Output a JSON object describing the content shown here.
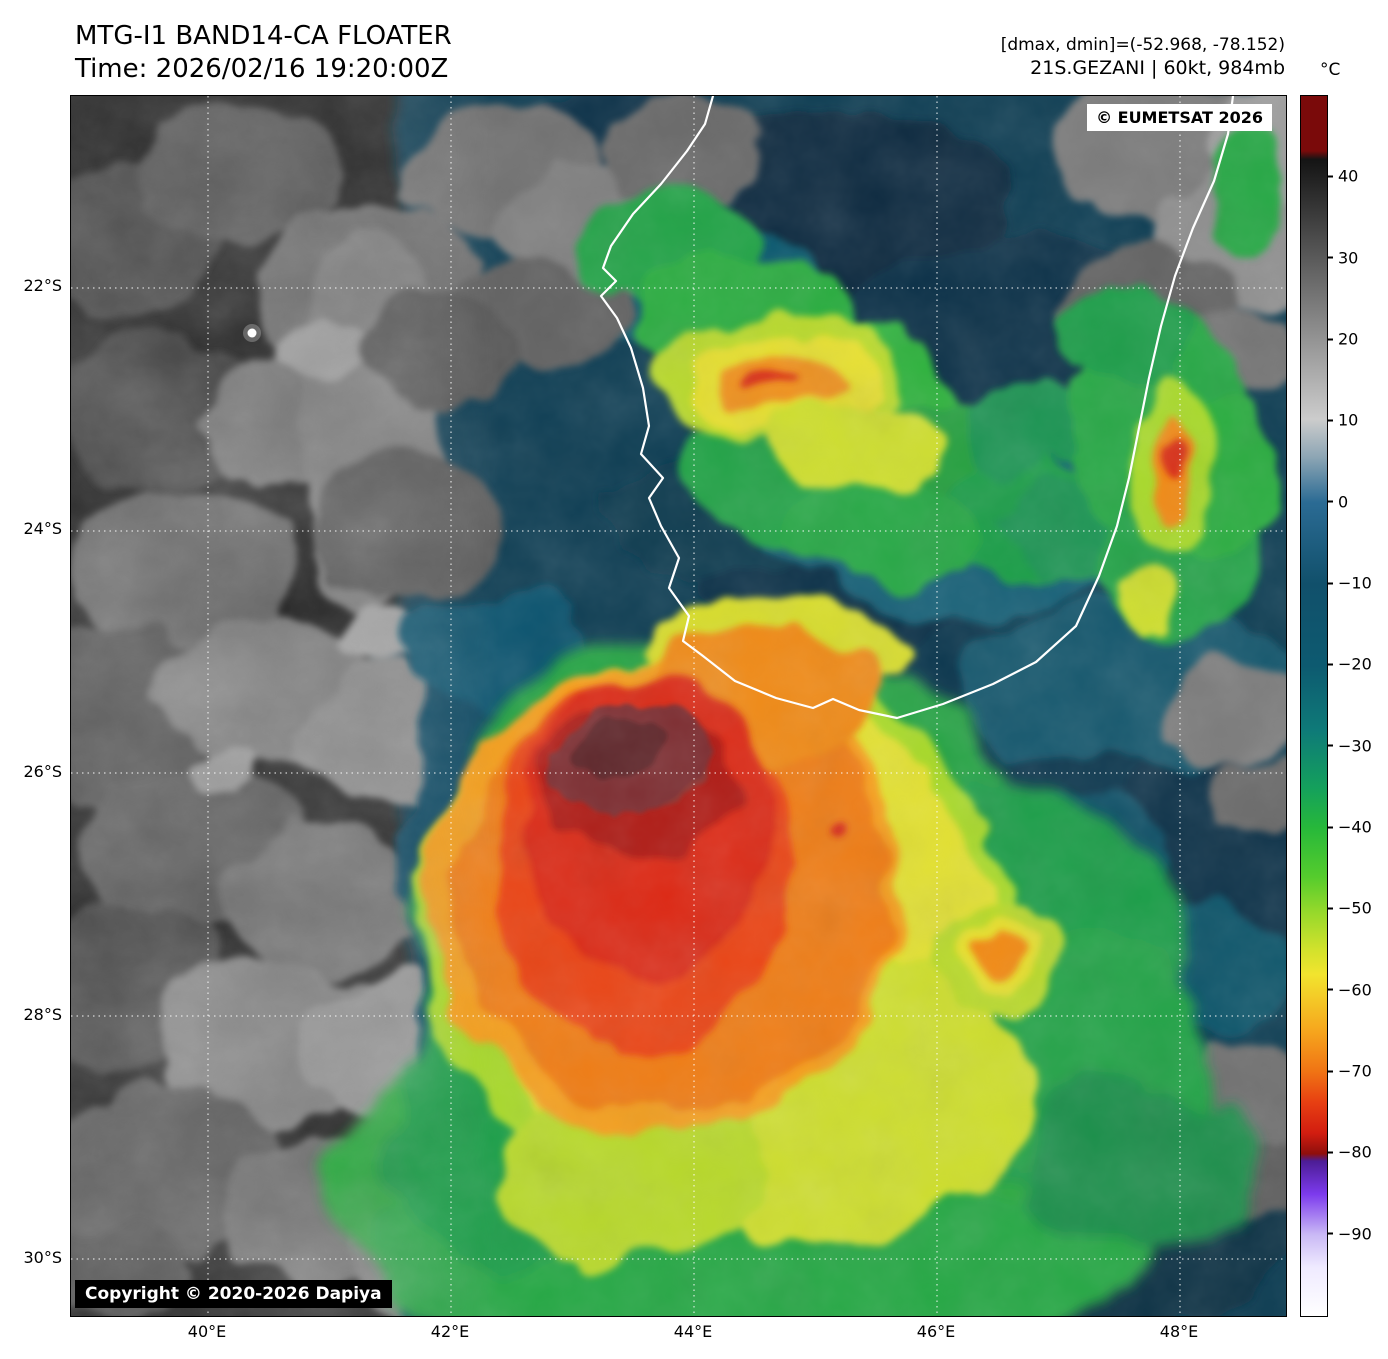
{
  "header": {
    "title": "MTG-I1 BAND14-CA FLOATER",
    "time": "Time: 2026/02/16 19:20:00Z",
    "stats": "[dmax, dmin]=(-52.968, -78.152)",
    "storm": "21S.GEZANI | 60kt, 984mb"
  },
  "map": {
    "credit": "© EUMETSAT 2026",
    "copyright": "Copyright © 2020-2026 Dapiya",
    "lat_labels": [
      "22°S",
      "24°S",
      "26°S",
      "28°S",
      "30°S"
    ],
    "lon_labels": [
      "40°E",
      "42°E",
      "44°E",
      "46°E",
      "48°E"
    ]
  },
  "colorbar": {
    "unit": "°C",
    "tick_values": [
      40,
      30,
      20,
      10,
      0,
      -10,
      -20,
      -30,
      -40,
      -50,
      -60,
      -70,
      -80,
      -90
    ],
    "scale_top_c": 50,
    "scale_bottom_c": -100,
    "stops": [
      {
        "pct": 0,
        "color": "#7a0a0a"
      },
      {
        "pct": 4.5,
        "color": "#7a0a0a"
      },
      {
        "pct": 5.2,
        "color": "#141414"
      },
      {
        "pct": 26.5,
        "color": "#cccccc"
      },
      {
        "pct": 29.5,
        "color": "#8fa7b5"
      },
      {
        "pct": 33.3,
        "color": "#2b6b94"
      },
      {
        "pct": 40,
        "color": "#11506b"
      },
      {
        "pct": 46.7,
        "color": "#0d5a70"
      },
      {
        "pct": 52,
        "color": "#0e7a78"
      },
      {
        "pct": 56.7,
        "color": "#14a05c"
      },
      {
        "pct": 60,
        "color": "#27b83a"
      },
      {
        "pct": 64,
        "color": "#55cc2d"
      },
      {
        "pct": 66.7,
        "color": "#92d82b"
      },
      {
        "pct": 70,
        "color": "#d2e22c"
      },
      {
        "pct": 72,
        "color": "#f2e42e"
      },
      {
        "pct": 76.7,
        "color": "#f6a51d"
      },
      {
        "pct": 80,
        "color": "#f07314"
      },
      {
        "pct": 82.5,
        "color": "#e73f12"
      },
      {
        "pct": 85,
        "color": "#d21d10"
      },
      {
        "pct": 86.7,
        "color": "#8f0f0c"
      },
      {
        "pct": 87.3,
        "color": "#4c1d95"
      },
      {
        "pct": 90,
        "color": "#7c3aed"
      },
      {
        "pct": 93.3,
        "color": "#c9b8f5"
      },
      {
        "pct": 96,
        "color": "#efeaff"
      },
      {
        "pct": 100,
        "color": "#ffffff"
      }
    ]
  }
}
